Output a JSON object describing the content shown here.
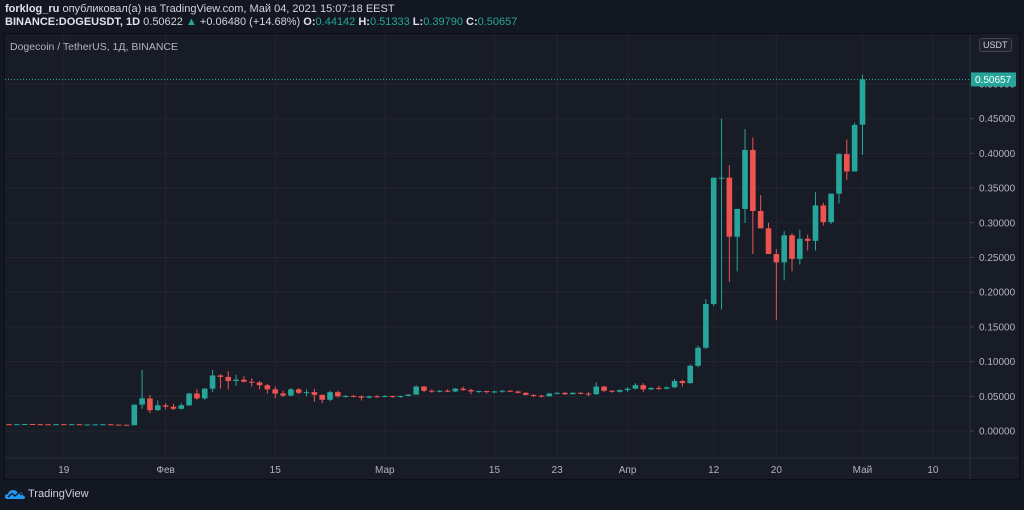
{
  "header": {
    "author": "forklog_ru",
    "published_text": "опубликовал(а) на TradingView.com, Май 04, 2021 15:07:18 EEST",
    "symbol": "BINANCE:DOGEUSDT, 1D",
    "last": "0.50622",
    "change": "+0.06480 (+14.68%)",
    "o_label": "O:",
    "o": "0.44142",
    "h_label": "H:",
    "h": "0.51333",
    "l_label": "L:",
    "l": "0.39790",
    "c_label": "C:",
    "c": "0.50657"
  },
  "chart_title": "Dogecoin / TetherUS, 1Д, BINANCE",
  "currency_label": "USDT",
  "branding": "TradingView",
  "colors": {
    "up": "#26a69a",
    "down": "#ef5350",
    "background": "#181c27",
    "grid": "#232632",
    "axis_text": "#b2b5be"
  },
  "chart_data": {
    "type": "candlestick",
    "title": "Dogecoin / TetherUS, 1Д, BINANCE",
    "xlabel": "",
    "ylabel": "USDT",
    "ylim": [
      -0.045,
      0.57
    ],
    "y_ticks": [
      "0.00000",
      "0.05000",
      "0.10000",
      "0.15000",
      "0.20000",
      "0.25000",
      "0.30000",
      "0.35000",
      "0.40000",
      "0.45000",
      "0.50000"
    ],
    "x_ticks": [
      {
        "label": "19",
        "day": 7
      },
      {
        "label": "Фев",
        "day": 20
      },
      {
        "label": "15",
        "day": 34
      },
      {
        "label": "Мар",
        "day": 48
      },
      {
        "label": "15",
        "day": 62
      },
      {
        "label": "23",
        "day": 70
      },
      {
        "label": "Апр",
        "day": 79
      },
      {
        "label": "12",
        "day": 90
      },
      {
        "label": "20",
        "day": 98
      },
      {
        "label": "Май",
        "day": 109
      },
      {
        "label": "10",
        "day": 118
      }
    ],
    "last_price": 0.50657,
    "start_date": "2021-01-12",
    "candles": [
      [
        0.0098,
        0.0101,
        0.0094,
        0.0097
      ],
      [
        0.0097,
        0.0099,
        0.0094,
        0.0098
      ],
      [
        0.0098,
        0.0102,
        0.0096,
        0.0101
      ],
      [
        0.0101,
        0.0102,
        0.0096,
        0.0098
      ],
      [
        0.0098,
        0.01,
        0.0095,
        0.0097
      ],
      [
        0.0097,
        0.0099,
        0.0093,
        0.0096
      ],
      [
        0.0096,
        0.01,
        0.0094,
        0.0098
      ],
      [
        0.0098,
        0.01,
        0.0095,
        0.0097
      ],
      [
        0.0097,
        0.01,
        0.0094,
        0.0098
      ],
      [
        0.0098,
        0.0099,
        0.0089,
        0.0091
      ],
      [
        0.0091,
        0.0096,
        0.0088,
        0.0094
      ],
      [
        0.0094,
        0.0097,
        0.0091,
        0.0095
      ],
      [
        0.0095,
        0.0101,
        0.0093,
        0.0097
      ],
      [
        0.0097,
        0.0099,
        0.0088,
        0.0092
      ],
      [
        0.0092,
        0.0095,
        0.0086,
        0.009
      ],
      [
        0.009,
        0.0093,
        0.0079,
        0.0083
      ],
      [
        0.0083,
        0.038,
        0.008,
        0.038
      ],
      [
        0.038,
        0.088,
        0.032,
        0.047
      ],
      [
        0.047,
        0.052,
        0.026,
        0.03
      ],
      [
        0.03,
        0.044,
        0.029,
        0.037
      ],
      [
        0.037,
        0.04,
        0.031,
        0.035
      ],
      [
        0.035,
        0.039,
        0.03,
        0.032
      ],
      [
        0.032,
        0.04,
        0.031,
        0.037
      ],
      [
        0.037,
        0.055,
        0.036,
        0.054
      ],
      [
        0.054,
        0.06,
        0.045,
        0.047
      ],
      [
        0.047,
        0.062,
        0.045,
        0.061
      ],
      [
        0.061,
        0.088,
        0.056,
        0.08
      ],
      [
        0.08,
        0.082,
        0.061,
        0.078
      ],
      [
        0.078,
        0.086,
        0.06,
        0.072
      ],
      [
        0.072,
        0.081,
        0.065,
        0.074
      ],
      [
        0.074,
        0.079,
        0.07,
        0.071
      ],
      [
        0.071,
        0.076,
        0.064,
        0.07
      ],
      [
        0.07,
        0.072,
        0.06,
        0.066
      ],
      [
        0.066,
        0.068,
        0.054,
        0.06
      ],
      [
        0.06,
        0.064,
        0.047,
        0.054
      ],
      [
        0.054,
        0.058,
        0.049,
        0.051
      ],
      [
        0.051,
        0.062,
        0.05,
        0.06
      ],
      [
        0.06,
        0.062,
        0.053,
        0.055
      ],
      [
        0.055,
        0.06,
        0.05,
        0.056
      ],
      [
        0.056,
        0.061,
        0.042,
        0.052
      ],
      [
        0.052,
        0.053,
        0.04,
        0.045
      ],
      [
        0.045,
        0.058,
        0.043,
        0.056
      ],
      [
        0.056,
        0.058,
        0.048,
        0.05
      ],
      [
        0.05,
        0.052,
        0.048,
        0.0505
      ],
      [
        0.0505,
        0.052,
        0.0485,
        0.05
      ],
      [
        0.05,
        0.051,
        0.044,
        0.048
      ],
      [
        0.048,
        0.051,
        0.047,
        0.05
      ],
      [
        0.05,
        0.052,
        0.048,
        0.0495
      ],
      [
        0.0495,
        0.0515,
        0.0485,
        0.0505
      ],
      [
        0.0505,
        0.051,
        0.0475,
        0.049
      ],
      [
        0.049,
        0.051,
        0.048,
        0.0505
      ],
      [
        0.0505,
        0.053,
        0.05,
        0.0525
      ],
      [
        0.0525,
        0.066,
        0.052,
        0.064
      ],
      [
        0.064,
        0.065,
        0.056,
        0.058
      ],
      [
        0.058,
        0.06,
        0.055,
        0.057
      ],
      [
        0.057,
        0.059,
        0.0555,
        0.058
      ],
      [
        0.058,
        0.06,
        0.056,
        0.057
      ],
      [
        0.057,
        0.062,
        0.056,
        0.061
      ],
      [
        0.061,
        0.064,
        0.058,
        0.059
      ],
      [
        0.059,
        0.061,
        0.053,
        0.057
      ],
      [
        0.057,
        0.058,
        0.055,
        0.0575
      ],
      [
        0.0575,
        0.058,
        0.054,
        0.056
      ],
      [
        0.056,
        0.058,
        0.0545,
        0.057
      ],
      [
        0.057,
        0.059,
        0.055,
        0.058
      ],
      [
        0.058,
        0.059,
        0.056,
        0.057
      ],
      [
        0.057,
        0.058,
        0.054,
        0.055
      ],
      [
        0.055,
        0.056,
        0.051,
        0.052
      ],
      [
        0.052,
        0.053,
        0.049,
        0.051
      ],
      [
        0.051,
        0.052,
        0.048,
        0.05
      ],
      [
        0.05,
        0.055,
        0.0495,
        0.054
      ],
      [
        0.054,
        0.056,
        0.053,
        0.055
      ],
      [
        0.055,
        0.056,
        0.052,
        0.053
      ],
      [
        0.053,
        0.056,
        0.0525,
        0.055
      ],
      [
        0.055,
        0.056,
        0.053,
        0.054
      ],
      [
        0.054,
        0.056,
        0.05,
        0.053
      ],
      [
        0.053,
        0.07,
        0.052,
        0.064
      ],
      [
        0.064,
        0.065,
        0.056,
        0.058
      ],
      [
        0.058,
        0.059,
        0.055,
        0.0565
      ],
      [
        0.0565,
        0.06,
        0.0555,
        0.059
      ],
      [
        0.059,
        0.063,
        0.056,
        0.061
      ],
      [
        0.061,
        0.069,
        0.06,
        0.066
      ],
      [
        0.066,
        0.069,
        0.056,
        0.06
      ],
      [
        0.06,
        0.063,
        0.059,
        0.062
      ],
      [
        0.062,
        0.065,
        0.059,
        0.061
      ],
      [
        0.061,
        0.064,
        0.06,
        0.063
      ],
      [
        0.063,
        0.075,
        0.062,
        0.072
      ],
      [
        0.072,
        0.074,
        0.064,
        0.069
      ],
      [
        0.069,
        0.096,
        0.068,
        0.094
      ],
      [
        0.094,
        0.123,
        0.092,
        0.12
      ],
      [
        0.12,
        0.19,
        0.118,
        0.183
      ],
      [
        0.183,
        0.365,
        0.18,
        0.365
      ],
      [
        0.365,
        0.45,
        0.175,
        0.365
      ],
      [
        0.365,
        0.383,
        0.215,
        0.28
      ],
      [
        0.28,
        0.315,
        0.23,
        0.32
      ],
      [
        0.32,
        0.435,
        0.3,
        0.405
      ],
      [
        0.405,
        0.423,
        0.255,
        0.317
      ],
      [
        0.317,
        0.34,
        0.295,
        0.292
      ],
      [
        0.292,
        0.3,
        0.255,
        0.255
      ],
      [
        0.255,
        0.262,
        0.16,
        0.243
      ],
      [
        0.243,
        0.288,
        0.217,
        0.282
      ],
      [
        0.282,
        0.285,
        0.23,
        0.248
      ],
      [
        0.248,
        0.29,
        0.24,
        0.277
      ],
      [
        0.277,
        0.283,
        0.26,
        0.274
      ],
      [
        0.274,
        0.344,
        0.26,
        0.325
      ],
      [
        0.325,
        0.329,
        0.296,
        0.301
      ],
      [
        0.301,
        0.339,
        0.298,
        0.342
      ],
      [
        0.342,
        0.4,
        0.328,
        0.399
      ],
      [
        0.399,
        0.42,
        0.362,
        0.374
      ],
      [
        0.374,
        0.444,
        0.374,
        0.441
      ],
      [
        0.4414,
        0.5133,
        0.3979,
        0.5066
      ]
    ]
  }
}
